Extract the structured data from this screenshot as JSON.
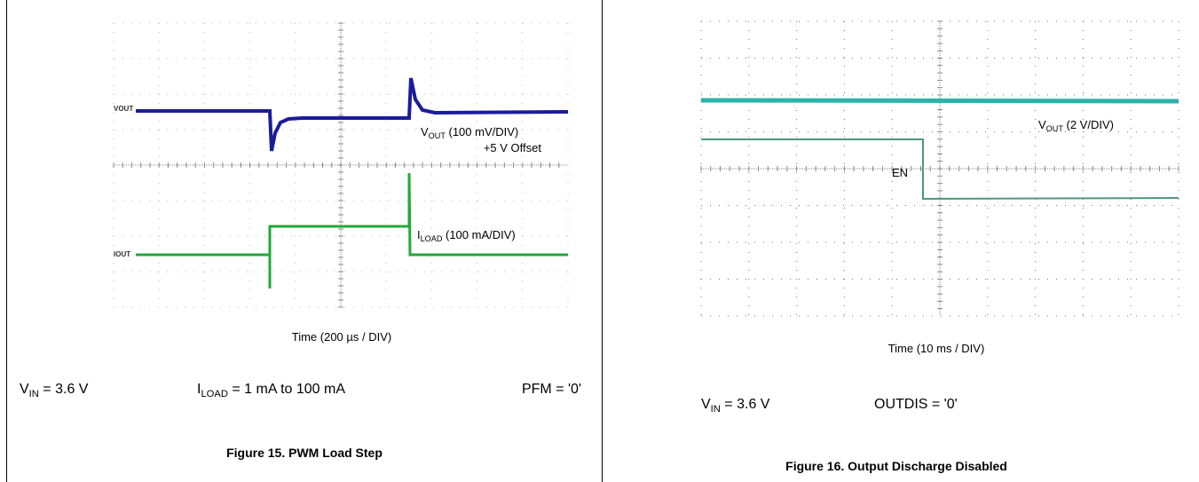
{
  "figures": [
    {
      "channel_labels": [
        "VOUT",
        "IOUT"
      ],
      "vout_label": {
        "symbol": "V",
        "sub": "OUT",
        "text": " (100 mV/DIV)"
      },
      "offset_label": "+5 V Offset",
      "iload_label": {
        "symbol": "I",
        "sub": "LOAD",
        "text": " (100 mA/DIV)"
      },
      "time_label": "Time (200 µs / DIV)",
      "conditions": [
        {
          "symbol": "V",
          "sub": "IN",
          "text": " = 3.6 V"
        },
        {
          "symbol": "I",
          "sub": "LOAD",
          "text": " = 1 mA to 100 mA"
        },
        {
          "text": "PFM = '0'"
        }
      ],
      "caption": "Figure 15. PWM Load Step"
    },
    {
      "vout_label": {
        "symbol": "V",
        "sub": "OUT",
        "text": " (2 V/DIV)"
      },
      "en_label": "EN",
      "time_label": "Time (10 ms / DIV)",
      "conditions": [
        {
          "symbol": "V",
          "sub": "IN",
          "text": " = 3.6 V"
        },
        {
          "text": "OUTDIS = '0'"
        }
      ],
      "caption": "Figure 16. Output Discharge Disabled"
    }
  ]
}
